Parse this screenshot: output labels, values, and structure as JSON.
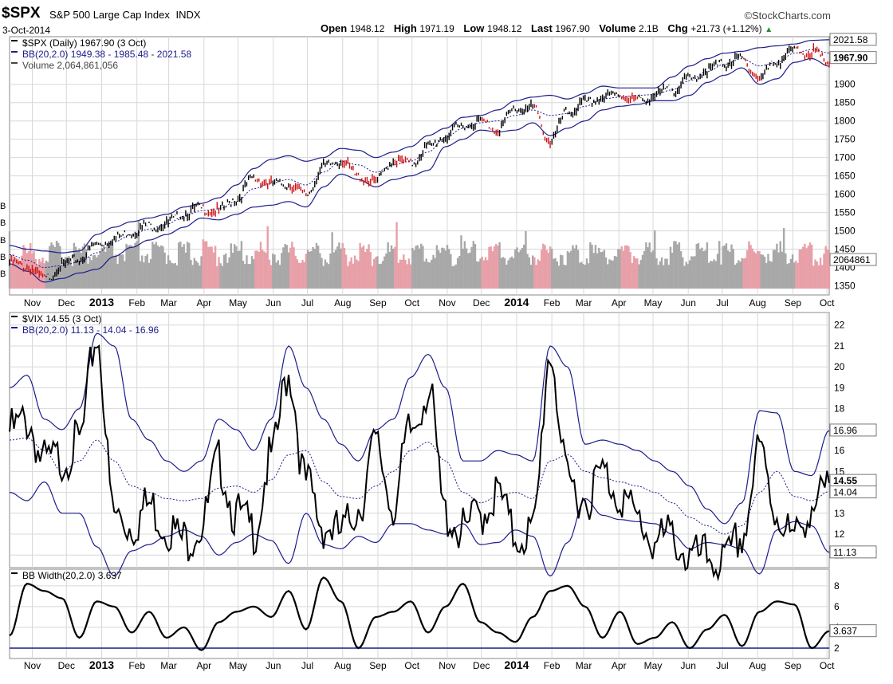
{
  "header": {
    "symbol": "$SPX",
    "name": "S&P 500 Large Cap Index",
    "exchange": "INDX",
    "brand": "©StockCharts.com",
    "date": "3-Oct-2014",
    "open_label": "Open",
    "open": "1948.12",
    "high_label": "High",
    "high": "1971.19",
    "low_label": "Low",
    "low": "1948.12",
    "last_label": "Last",
    "last": "1967.90",
    "volume_label": "Volume",
    "volume": "2.1B",
    "chg_label": "Chg",
    "chg": "+21.73 (+1.12%)"
  },
  "colors": {
    "price_up": "#000000",
    "price_down": "#cc1111",
    "band": "#1c1c8c",
    "vol_up": "#a8a8a8",
    "vol_down": "#e8a0a8",
    "grid": "#d8d8d8"
  },
  "chart_data": [
    {
      "type": "line",
      "title": "$SPX (Daily) 1967.90 (3 Oct)",
      "legend": [
        "BB(20,2.0) 1949.38 - 1985.48 - 2021.58",
        "Volume 2,064,861,056"
      ],
      "ylim": [
        1325,
        2030
      ],
      "y_ticks": [
        1350,
        1400,
        1450,
        1500,
        1550,
        1600,
        1650,
        1700,
        1750,
        1800,
        1850,
        1900
      ],
      "x_ticks": [
        "Nov",
        "Dec",
        "2013",
        "Feb",
        "Mar",
        "Apr",
        "May",
        "Jun",
        "Jul",
        "Aug",
        "Sep",
        "Oct",
        "Nov",
        "Dec",
        "2014",
        "Feb",
        "Mar",
        "Apr",
        "May",
        "Jun",
        "Jul",
        "Aug",
        "Sep",
        "Oct"
      ],
      "right_labels": [
        "2021.58",
        "1967.90",
        "2064861"
      ],
      "left_volume_labels": [
        "B",
        "B",
        "B",
        "B",
        "B",
        "B"
      ],
      "dates": [
        "2012-10-12",
        "2012-11-01",
        "2012-11-16",
        "2012-12-01",
        "2012-12-16",
        "2013-01-01",
        "2013-01-16",
        "2013-02-01",
        "2013-02-16",
        "2013-03-01",
        "2013-03-16",
        "2013-04-01",
        "2013-04-16",
        "2013-05-01",
        "2013-05-16",
        "2013-06-01",
        "2013-06-16",
        "2013-07-01",
        "2013-07-16",
        "2013-08-01",
        "2013-08-16",
        "2013-09-01",
        "2013-09-16",
        "2013-10-01",
        "2013-10-16",
        "2013-11-01",
        "2013-11-16",
        "2013-12-01",
        "2013-12-16",
        "2014-01-01",
        "2014-01-16",
        "2014-02-01",
        "2014-02-16",
        "2014-03-01",
        "2014-03-16",
        "2014-04-01",
        "2014-04-16",
        "2014-05-01",
        "2014-05-16",
        "2014-06-01",
        "2014-06-16",
        "2014-07-01",
        "2014-07-16",
        "2014-08-01",
        "2014-08-16",
        "2014-09-01",
        "2014-09-16",
        "2014-10-03"
      ],
      "series": [
        {
          "name": "$SPX",
          "values": [
            1420,
            1410,
            1375,
            1412,
            1430,
            1470,
            1485,
            1505,
            1520,
            1525,
            1555,
            1568,
            1560,
            1595,
            1650,
            1635,
            1635,
            1605,
            1680,
            1700,
            1655,
            1640,
            1700,
            1690,
            1735,
            1765,
            1795,
            1805,
            1785,
            1840,
            1842,
            1752,
            1830,
            1855,
            1870,
            1880,
            1862,
            1875,
            1895,
            1920,
            1945,
            1965,
            1975,
            1925,
            1970,
            1998,
            1995,
            1968
          ]
        },
        {
          "name": "BB upper",
          "values": [
            1460,
            1450,
            1445,
            1440,
            1445,
            1490,
            1510,
            1525,
            1535,
            1545,
            1565,
            1575,
            1590,
            1625,
            1670,
            1695,
            1705,
            1690,
            1700,
            1725,
            1720,
            1700,
            1715,
            1730,
            1760,
            1780,
            1810,
            1815,
            1830,
            1855,
            1865,
            1870,
            1860,
            1875,
            1895,
            1890,
            1890,
            1890,
            1920,
            1950,
            1970,
            1985,
            1990,
            2000,
            2005,
            2010,
            2020,
            2021.58
          ]
        },
        {
          "name": "BB middle",
          "values": [
            1435,
            1420,
            1400,
            1405,
            1415,
            1440,
            1470,
            1490,
            1505,
            1518,
            1540,
            1555,
            1560,
            1580,
            1615,
            1630,
            1640,
            1625,
            1660,
            1690,
            1680,
            1660,
            1680,
            1690,
            1715,
            1755,
            1780,
            1795,
            1800,
            1815,
            1830,
            1815,
            1820,
            1840,
            1860,
            1865,
            1870,
            1872,
            1885,
            1910,
            1935,
            1955,
            1970,
            1950,
            1960,
            1985,
            1995,
            1985.48
          ]
        },
        {
          "name": "BB lower",
          "values": [
            1410,
            1390,
            1360,
            1370,
            1385,
            1395,
            1430,
            1455,
            1475,
            1490,
            1510,
            1535,
            1530,
            1545,
            1565,
            1570,
            1580,
            1565,
            1620,
            1655,
            1640,
            1620,
            1640,
            1650,
            1665,
            1730,
            1750,
            1775,
            1770,
            1775,
            1795,
            1760,
            1780,
            1800,
            1830,
            1840,
            1845,
            1855,
            1855,
            1870,
            1905,
            1925,
            1945,
            1900,
            1915,
            1960,
            1970,
            1949.38
          ]
        }
      ]
    },
    {
      "type": "line",
      "title": "$VIX 14.55 (3 Oct)",
      "legend": [
        "BB(20,2.0) 11.13 - 14.04 - 16.96"
      ],
      "ylim": [
        10.4,
        22.6
      ],
      "y_ticks": [
        11,
        12,
        13,
        14,
        15,
        16,
        17,
        18,
        19,
        20,
        21,
        22
      ],
      "right_labels": [
        "16.96",
        "14.55",
        "14.04",
        "11.13"
      ],
      "dates": [
        "2012-10-12",
        "2012-11-01",
        "2012-11-16",
        "2012-12-01",
        "2012-12-16",
        "2013-01-01",
        "2013-01-16",
        "2013-02-01",
        "2013-02-16",
        "2013-03-01",
        "2013-03-16",
        "2013-04-01",
        "2013-04-16",
        "2013-05-01",
        "2013-05-16",
        "2013-06-01",
        "2013-06-16",
        "2013-07-01",
        "2013-07-16",
        "2013-08-01",
        "2013-08-16",
        "2013-09-01",
        "2013-09-16",
        "2013-10-01",
        "2013-10-16",
        "2013-11-01",
        "2013-11-16",
        "2013-12-01",
        "2013-12-16",
        "2014-01-01",
        "2014-01-16",
        "2014-02-01",
        "2014-02-16",
        "2014-03-01",
        "2014-03-16",
        "2014-04-01",
        "2014-04-16",
        "2014-05-01",
        "2014-05-16",
        "2014-06-01",
        "2014-06-16",
        "2014-07-01",
        "2014-07-16",
        "2014-08-01",
        "2014-08-16",
        "2014-09-01",
        "2014-09-16",
        "2014-10-03"
      ],
      "series": [
        {
          "name": "$VIX",
          "values": [
            17.5,
            18.0,
            16.0,
            16.2,
            17.0,
            22.0,
            13.5,
            13.0,
            14.0,
            13.0,
            12.3,
            13.0,
            16.0,
            13.5,
            12.8,
            16.2,
            20.3,
            15.0,
            13.0,
            12.6,
            13.9,
            16.8,
            14.0,
            17.5,
            19.5,
            13.5,
            12.7,
            13.6,
            14.5,
            12.5,
            12.7,
            21.3,
            15.0,
            14.3,
            15.5,
            14.5,
            13.3,
            12.2,
            12.5,
            11.4,
            11.5,
            11.2,
            12.5,
            16.5,
            13.6,
            12.3,
            14.0,
            14.55
          ]
        },
        {
          "name": "BB upper",
          "values": [
            19.0,
            19.6,
            17.5,
            17.0,
            18.0,
            21.6,
            21.0,
            17.5,
            16.5,
            15.5,
            15.0,
            15.5,
            17.5,
            17.0,
            16.0,
            17.5,
            21.0,
            19.0,
            17.5,
            16.3,
            15.5,
            17.0,
            17.5,
            19.5,
            20.6,
            19.0,
            15.5,
            15.5,
            16.0,
            15.8,
            15.5,
            21.0,
            20.0,
            16.3,
            16.5,
            16.3,
            16.0,
            15.5,
            15.0,
            14.3,
            13.2,
            12.5,
            13.5,
            17.9,
            17.8,
            15.0,
            14.8,
            16.96
          ]
        },
        {
          "name": "BB middle",
          "values": [
            16.5,
            16.6,
            16.0,
            15.0,
            15.5,
            16.5,
            15.5,
            14.3,
            14.0,
            13.7,
            13.6,
            13.7,
            14.2,
            14.3,
            14.0,
            14.6,
            15.8,
            16.0,
            14.5,
            13.8,
            13.7,
            14.3,
            15.0,
            16.0,
            16.4,
            15.5,
            14.0,
            13.5,
            13.8,
            14.0,
            13.7,
            15.5,
            15.8,
            15.0,
            14.7,
            14.5,
            14.3,
            14.0,
            13.5,
            12.8,
            12.4,
            12.0,
            12.4,
            14.0,
            15.0,
            13.8,
            13.6,
            14.04
          ]
        },
        {
          "name": "BB lower",
          "values": [
            14.0,
            13.6,
            14.5,
            13.0,
            13.0,
            11.4,
            10.0,
            11.2,
            11.5,
            11.9,
            12.2,
            11.9,
            11.0,
            11.6,
            12.0,
            11.7,
            10.6,
            13.0,
            11.5,
            11.3,
            11.9,
            11.6,
            12.5,
            12.5,
            12.2,
            12.0,
            12.5,
            11.5,
            11.6,
            12.2,
            11.9,
            10.0,
            11.6,
            13.7,
            12.9,
            12.7,
            12.6,
            12.5,
            12.0,
            11.3,
            11.6,
            11.5,
            11.3,
            10.1,
            12.2,
            12.6,
            12.4,
            11.13
          ]
        }
      ]
    },
    {
      "type": "line",
      "title": "BB Width(20,2.0) 3.637",
      "ylim": [
        1,
        9.6
      ],
      "y_ticks": [
        2,
        4,
        6,
        8
      ],
      "right_labels": [
        "3.637"
      ],
      "dates": [
        "2012-10-12",
        "2012-11-01",
        "2012-11-16",
        "2012-12-01",
        "2012-12-16",
        "2013-01-01",
        "2013-01-16",
        "2013-02-01",
        "2013-02-16",
        "2013-03-01",
        "2013-03-16",
        "2013-04-01",
        "2013-04-16",
        "2013-05-01",
        "2013-05-16",
        "2013-06-01",
        "2013-06-16",
        "2013-07-01",
        "2013-07-16",
        "2013-08-01",
        "2013-08-16",
        "2013-09-01",
        "2013-09-16",
        "2013-10-01",
        "2013-10-16",
        "2013-11-01",
        "2013-11-16",
        "2013-12-01",
        "2013-12-16",
        "2014-01-01",
        "2014-01-16",
        "2014-02-01",
        "2014-02-16",
        "2014-03-01",
        "2014-03-16",
        "2014-04-01",
        "2014-04-16",
        "2014-05-01",
        "2014-05-16",
        "2014-06-01",
        "2014-06-16",
        "2014-07-01",
        "2014-07-16",
        "2014-08-01",
        "2014-08-16",
        "2014-09-01",
        "2014-09-16",
        "2014-10-03"
      ],
      "series": [
        {
          "name": "BB Width",
          "values": [
            3.2,
            8.2,
            7.5,
            6.8,
            3.0,
            6.5,
            6.0,
            3.5,
            5.5,
            3.0,
            4.0,
            1.8,
            4.5,
            5.5,
            6.0,
            5.0,
            7.5,
            3.8,
            8.8,
            6.5,
            2.0,
            5.0,
            5.5,
            6.5,
            3.5,
            6.0,
            8.2,
            4.5,
            3.5,
            2.6,
            5.0,
            7.5,
            8.0,
            6.0,
            3.0,
            5.5,
            2.4,
            3.0,
            4.5,
            2.0,
            3.8,
            5.2,
            2.2,
            5.5,
            6.5,
            6.2,
            2.0,
            3.637
          ]
        },
        {
          "name": "Baseline",
          "values": [
            2,
            2,
            2,
            2,
            2,
            2,
            2,
            2,
            2,
            2,
            2,
            2,
            2,
            2,
            2,
            2,
            2,
            2,
            2,
            2,
            2,
            2,
            2,
            2,
            2,
            2,
            2,
            2,
            2,
            2,
            2,
            2,
            2,
            2,
            2,
            2,
            2,
            2,
            2,
            2,
            2,
            2,
            2,
            2,
            2,
            2,
            2,
            2
          ]
        }
      ]
    }
  ]
}
